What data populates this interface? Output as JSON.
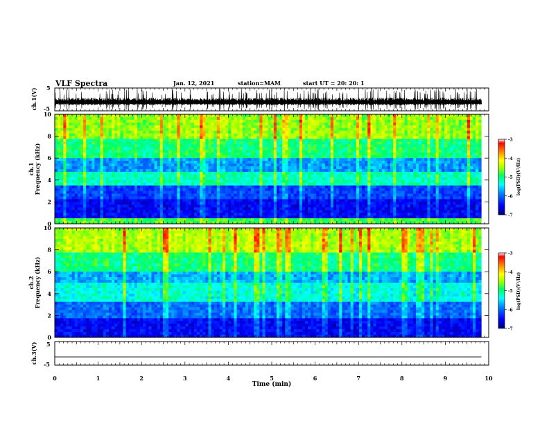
{
  "header": {
    "title": "VLF Spectra",
    "date": "Jan. 12, 2021",
    "station": "station=MAM",
    "start": "start UT =  20: 20: 1"
  },
  "colors": {
    "axis": "#000000",
    "colormap": [
      "#000080",
      "#0000ff",
      "#0080ff",
      "#00ffff",
      "#00ff60",
      "#a0ff00",
      "#ffff00",
      "#ff8000",
      "#ff0000",
      "#ffffff"
    ]
  },
  "chart_data": [
    {
      "type": "line",
      "ylabel": "ch.1(V)",
      "ylim": [
        -5,
        5
      ],
      "yticks": [
        "5",
        "-5"
      ],
      "description_of_signal": "dense impulsive waveform",
      "xlim": [
        0,
        10
      ]
    },
    {
      "type": "heatmap",
      "ylabel_top": "ch.1",
      "ylabel": "Frequency (kHz)",
      "ylim": [
        0,
        10
      ],
      "yticks": [
        "0",
        "2",
        "4",
        "6",
        "8",
        "10"
      ],
      "xlim": [
        0,
        10
      ],
      "data_end_min": 9.83,
      "bands_khz": [
        {
          "from": 0,
          "to": 0.6,
          "level": 0.55
        },
        {
          "from": 0.6,
          "to": 2.2,
          "level": 0.12
        },
        {
          "from": 2.2,
          "to": 3.4,
          "level": 0.2
        },
        {
          "from": 3.4,
          "to": 4.8,
          "level": 0.45
        },
        {
          "from": 4.8,
          "to": 6.0,
          "level": 0.3
        },
        {
          "from": 6.0,
          "to": 7.8,
          "level": 0.5
        },
        {
          "from": 7.8,
          "to": 10,
          "level": 0.62
        }
      ],
      "colorbar": {
        "label": "log(PSD)(V²/Hz)",
        "ticks": [
          "-3",
          "-4",
          "-5",
          "-6",
          "-7"
        ],
        "range": [
          -7,
          -3
        ]
      }
    },
    {
      "type": "heatmap",
      "ylabel_top": "ch.2",
      "ylabel": "Frequency (kHz)",
      "ylim": [
        0,
        10
      ],
      "yticks": [
        "0",
        "2",
        "4",
        "6",
        "8",
        "10"
      ],
      "xlim": [
        0,
        10
      ],
      "data_end_min": 9.83,
      "bands_khz": [
        {
          "from": 0,
          "to": 1.8,
          "level": 0.12
        },
        {
          "from": 1.8,
          "to": 3.2,
          "level": 0.25
        },
        {
          "from": 3.2,
          "to": 5.0,
          "level": 0.42
        },
        {
          "from": 5.0,
          "to": 6.0,
          "level": 0.32
        },
        {
          "from": 6.0,
          "to": 7.8,
          "level": 0.5
        },
        {
          "from": 7.8,
          "to": 10,
          "level": 0.64
        }
      ],
      "colorbar": {
        "label": "log(PSD)(V²/Hz)",
        "ticks": [
          "-3",
          "-4",
          "-5",
          "-6",
          "-7"
        ],
        "range": [
          -7,
          -3
        ]
      }
    },
    {
      "type": "line",
      "ylabel": "ch.3(V)",
      "ylim": [
        -5,
        5
      ],
      "yticks": [
        "5",
        "-5"
      ],
      "xlim": [
        0,
        10
      ],
      "constant_value": -1.5
    }
  ],
  "xaxis": {
    "label": "Time (min)",
    "ticks": [
      "0",
      "1",
      "2",
      "3",
      "4",
      "5",
      "6",
      "7",
      "8",
      "9",
      "10"
    ]
  }
}
